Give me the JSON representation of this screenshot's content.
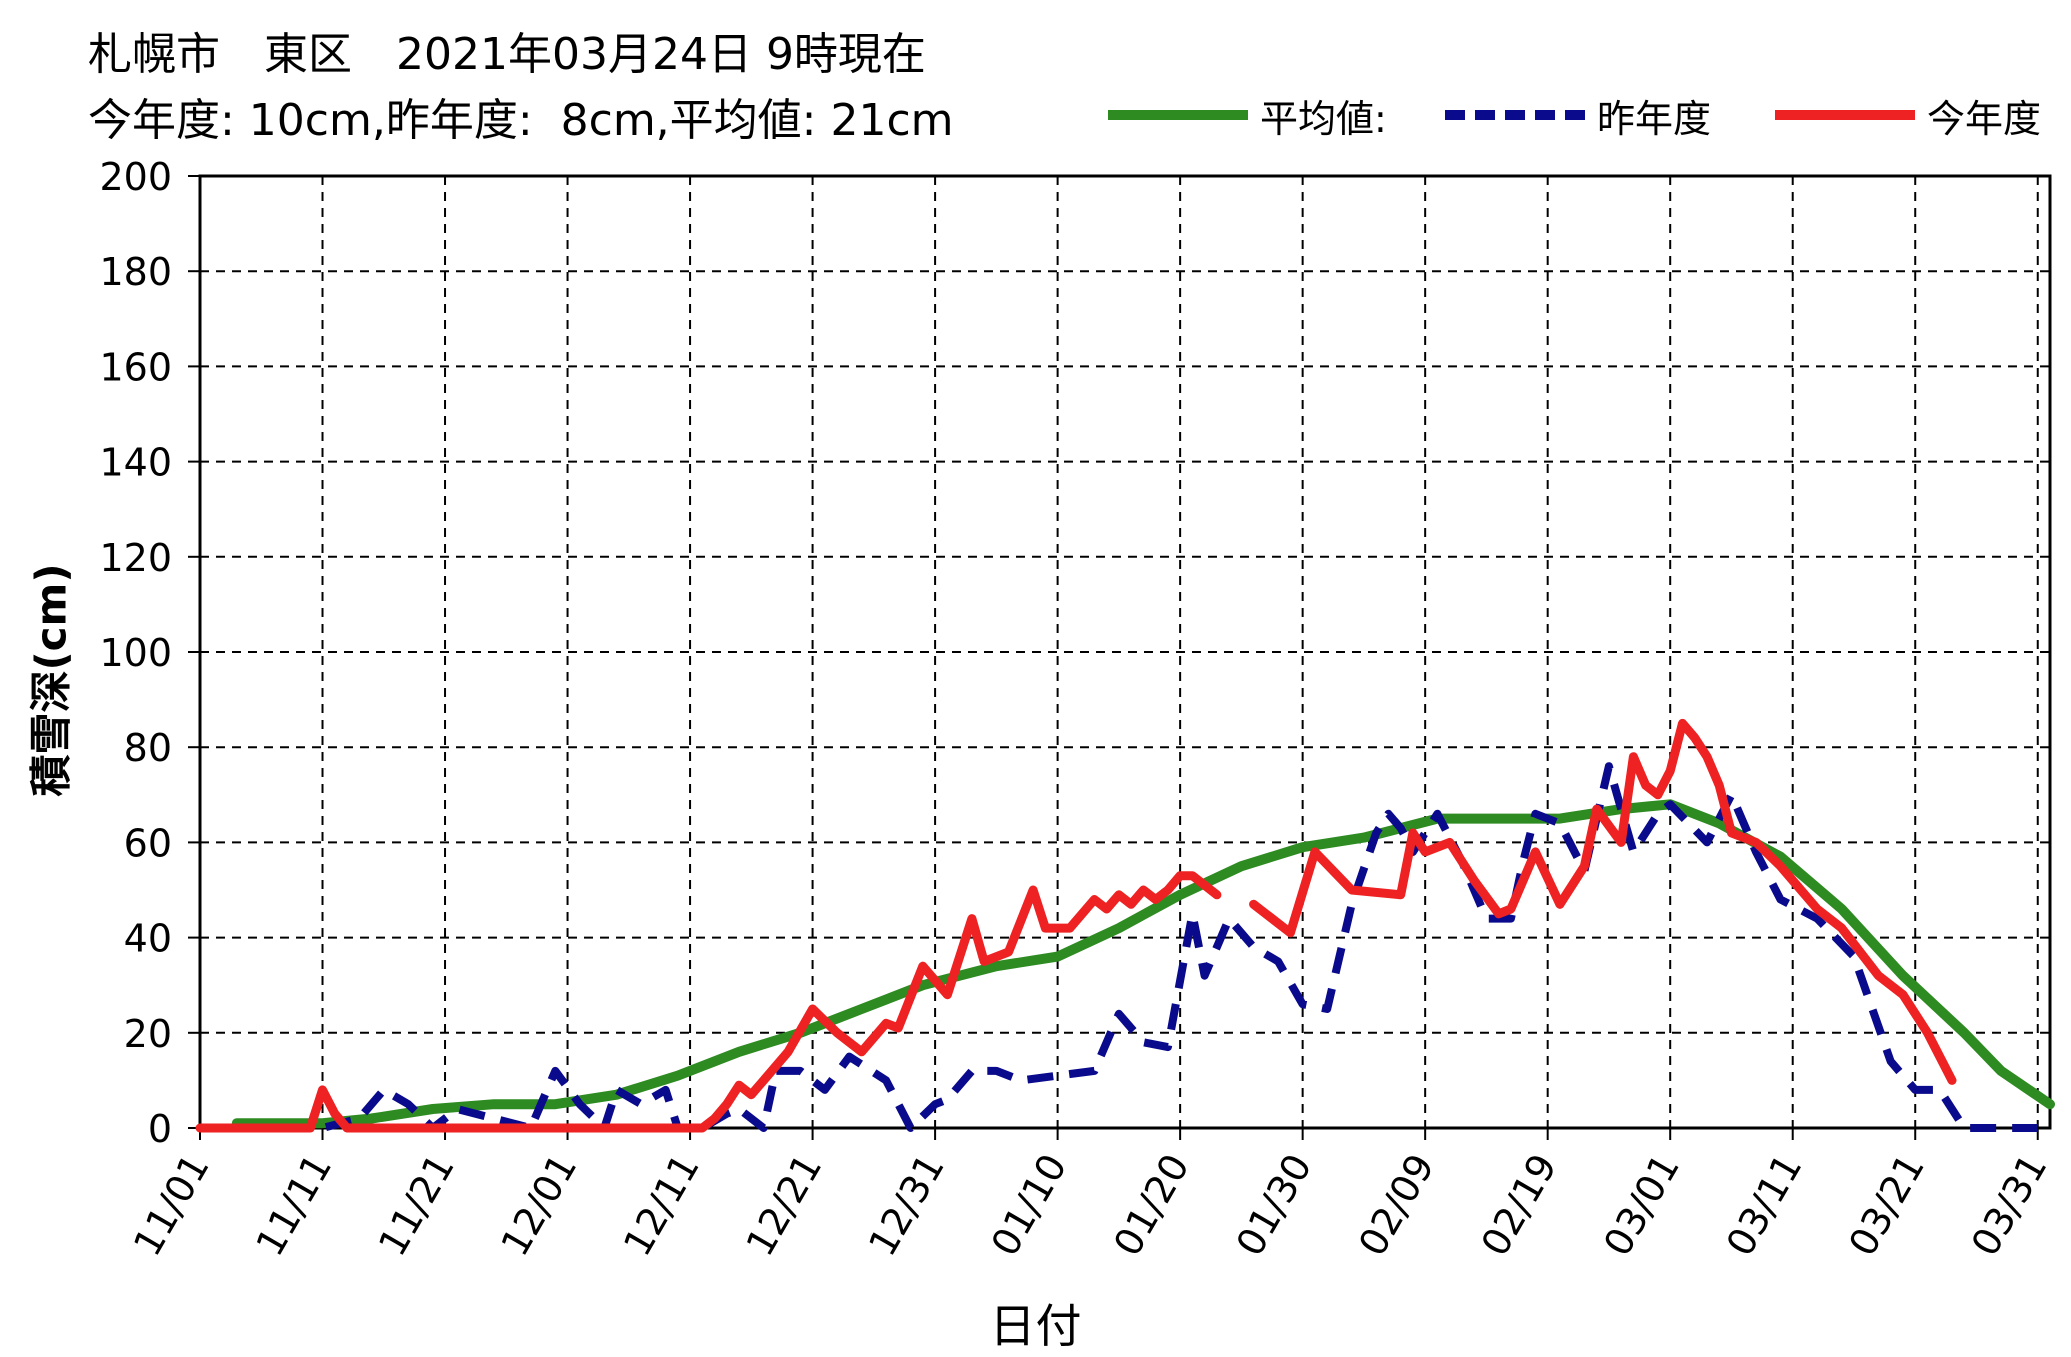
{
  "title": {
    "line1": "札幌市　東区　2021年03月24日 9時現在",
    "line2": "今年度: 10cm,昨年度:  8cm,平均値: 21cm"
  },
  "colors": {
    "average": "#2e8b22",
    "last_year": "#0a0a8c",
    "this_year": "#ee2222",
    "grid": "#000000"
  },
  "chart_data": {
    "type": "line",
    "title": "札幌市　東区　2021年03月24日 9時現在",
    "subtitle": "今年度: 10cm,昨年度:  8cm,平均値: 21cm",
    "xlabel": "日付",
    "ylabel": "積雪深(cm)",
    "ylim": [
      0,
      200
    ],
    "yticks": [
      0,
      20,
      40,
      60,
      80,
      100,
      120,
      140,
      160,
      180,
      200
    ],
    "xlim": [
      "11/01",
      "04/01"
    ],
    "xticks": [
      "11/01",
      "11/11",
      "11/21",
      "12/01",
      "12/11",
      "12/21",
      "12/31",
      "01/10",
      "01/20",
      "01/30",
      "02/09",
      "02/19",
      "03/01",
      "03/11",
      "03/21",
      "03/31"
    ],
    "grid": true,
    "legend_position": "top-right",
    "series": [
      {
        "name": "平均値:",
        "style": "solid",
        "x": [
          "11/04",
          "11/11",
          "11/15",
          "11/20",
          "11/25",
          "11/30",
          "12/05",
          "12/10",
          "12/15",
          "12/20",
          "12/25",
          "12/30",
          "01/05",
          "01/10",
          "01/15",
          "01/20",
          "01/25",
          "01/30",
          "02/04",
          "02/07",
          "02/10",
          "02/15",
          "02/20",
          "02/25",
          "03/01",
          "03/05",
          "03/10",
          "03/15",
          "03/20",
          "03/25",
          "03/28",
          "04/01"
        ],
        "y": [
          1,
          1,
          2,
          4,
          5,
          5,
          7,
          11,
          16,
          20,
          25,
          30,
          34,
          36,
          42,
          49,
          55,
          59,
          61,
          63,
          65,
          65,
          65,
          67,
          68,
          64,
          57,
          46,
          32,
          20,
          12,
          5
        ]
      },
      {
        "name": "昨年度",
        "style": "dashed",
        "x": [
          "11/01",
          "11/11",
          "11/14",
          "11/16",
          "11/18",
          "11/20",
          "11/22",
          "11/25",
          "11/28",
          "11/30",
          "12/02",
          "12/04",
          "12/05",
          "12/07",
          "12/09",
          "12/10",
          "12/12",
          "12/14",
          "12/15",
          "12/17",
          "12/18",
          "12/20",
          "12/22",
          "12/24",
          "12/27",
          "12/29",
          "12/31",
          "01/01",
          "01/03",
          "01/05",
          "01/07",
          "01/10",
          "01/13",
          "01/15",
          "01/17",
          "01/19",
          "01/21",
          "01/22",
          "01/24",
          "01/26",
          "01/28",
          "01/30",
          "02/01",
          "02/03",
          "02/05",
          "02/06",
          "02/07",
          "02/08",
          "02/10",
          "02/12",
          "02/14",
          "02/16",
          "02/17",
          "02/18",
          "02/20",
          "02/22",
          "02/24",
          "02/26",
          "02/28",
          "03/01",
          "03/04",
          "03/06",
          "03/08",
          "03/10",
          "03/13",
          "03/16",
          "03/19",
          "03/21",
          "03/23",
          "03/25",
          "03/27",
          "03/29",
          "03/31"
        ],
        "y": [
          0,
          0,
          2,
          8,
          5,
          0,
          4,
          2,
          0,
          12,
          5,
          0,
          8,
          5,
          8,
          0,
          0,
          3,
          4,
          0,
          12,
          12,
          8,
          15,
          10,
          0,
          5,
          6,
          12,
          12,
          10,
          11,
          12,
          24,
          18,
          17,
          45,
          32,
          44,
          38,
          35,
          26,
          25,
          47,
          62,
          66,
          63,
          58,
          66,
          56,
          44,
          44,
          56,
          66,
          64,
          54,
          76,
          58,
          66,
          68,
          60,
          70,
          58,
          48,
          44,
          36,
          14,
          8,
          8,
          0,
          0,
          0,
          0
        ]
      },
      {
        "name": "今年度",
        "style": "solid",
        "segments": [
          {
            "x": [
              "11/01",
              "11/10",
              "11/11",
              "11/12",
              "11/13",
              "11/30",
              "12/10",
              "12/12",
              "12/13",
              "12/14",
              "12/15",
              "12/16",
              "12/17",
              "12/19",
              "12/21",
              "12/23",
              "12/25",
              "12/27",
              "12/28",
              "12/30",
              "01/01",
              "01/03",
              "01/04",
              "01/06",
              "01/08",
              "01/09",
              "01/11",
              "01/13",
              "01/14",
              "01/15",
              "01/16",
              "01/17",
              "01/18",
              "01/19",
              "01/20",
              "01/21",
              "01/23"
            ],
            "y": [
              0,
              0,
              8,
              3,
              0,
              0,
              0,
              0,
              2,
              5,
              9,
              7,
              10,
              16,
              25,
              20,
              16,
              22,
              21,
              34,
              28,
              44,
              35,
              37,
              50,
              42,
              42,
              48,
              46,
              49,
              47,
              50,
              48,
              50,
              53,
              53,
              49
            ]
          },
          {
            "x": [
              "01/26",
              "01/29",
              "01/31",
              "02/03",
              "02/07",
              "02/08",
              "02/09",
              "02/11",
              "02/13",
              "02/15",
              "02/16",
              "02/18",
              "02/20",
              "02/22",
              "02/23",
              "02/25",
              "02/26",
              "02/27",
              "02/28",
              "03/01",
              "03/02",
              "03/03",
              "03/04",
              "03/05",
              "03/06",
              "03/08",
              "03/10",
              "03/13",
              "03/15",
              "03/18",
              "03/20",
              "03/22",
              "03/24"
            ],
            "y": [
              47,
              41,
              58,
              50,
              49,
              62,
              58,
              60,
              52,
              45,
              46,
              58,
              47,
              55,
              67,
              60,
              78,
              72,
              70,
              75,
              85,
              82,
              78,
              72,
              62,
              60,
              55,
              46,
              42,
              32,
              28,
              20,
              10
            ]
          }
        ]
      }
    ]
  }
}
